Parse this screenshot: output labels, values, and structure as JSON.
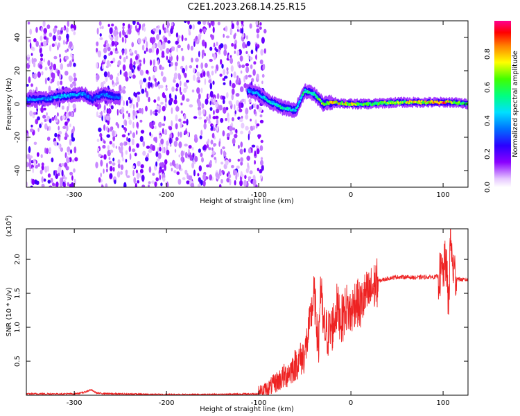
{
  "title": "C2E1.2023.268.14.25.R15",
  "chart_data": [
    {
      "type": "heatmap",
      "xlabel": "Height of straight line (km)",
      "ylabel": "Frequency (Hz)",
      "xlim": [
        -352,
        127
      ],
      "ylim": [
        -50,
        50
      ],
      "xticks": [
        -300,
        -200,
        -100,
        0,
        100
      ],
      "xtick_labels": [
        "-300",
        "-200",
        "-100",
        "0",
        "100"
      ],
      "yticks": [
        -40,
        -20,
        0,
        20,
        40
      ],
      "ytick_labels": [
        "-40",
        "-20",
        "0",
        "20",
        "40"
      ],
      "colorbar": {
        "label": "Normalized spectral amplitude",
        "range": [
          0.0,
          1.0
        ],
        "ticks": [
          0.0,
          0.2,
          0.4,
          0.6,
          0.8
        ],
        "tick_labels": [
          "0.0",
          "0.2",
          "0.4",
          "0.6",
          "0.8"
        ],
        "colors": [
          "#ffffff",
          "#8a00ff",
          "#0000ff",
          "#00c8ff",
          "#00ff3c",
          "#ffff00",
          "#ff8000",
          "#ff0000",
          "#ff0090"
        ]
      },
      "noise_regions": [
        [
          -352,
          -298
        ],
        [
          -276,
          -93
        ]
      ],
      "ridge": {
        "x": [
          -330,
          -310,
          -290,
          -280,
          -268,
          -255,
          -110,
          -100,
          -90,
          -75,
          -60,
          -50,
          -40,
          -30,
          -20,
          0,
          20,
          50,
          80,
          100,
          110,
          127
        ],
        "frequency": [
          3,
          5,
          6,
          3,
          6,
          4,
          8,
          6,
          2,
          -2,
          -4,
          8,
          6,
          0,
          1,
          0,
          0,
          1,
          1,
          1,
          1,
          0
        ],
        "amplitude": [
          0.4,
          0.45,
          0.4,
          0.3,
          0.4,
          0.35,
          0.4,
          0.45,
          0.5,
          0.55,
          0.5,
          0.6,
          0.55,
          0.7,
          0.8,
          0.75,
          0.6,
          0.7,
          0.8,
          0.95,
          0.7,
          0.6
        ]
      }
    },
    {
      "type": "line",
      "xlabel": "Height of straight line (km)",
      "ylabel": "SNR (10 * v/v)",
      "scale_label": "(x10",
      "scale_exponent": "4",
      "scale_suffix": ")",
      "xlim": [
        -352,
        127
      ],
      "ylim": [
        0,
        2.45
      ],
      "xticks": [
        -300,
        -200,
        -100,
        0,
        100
      ],
      "xtick_labels": [
        "-300",
        "-200",
        "-100",
        "0",
        "100"
      ],
      "yticks": [
        0.5,
        1.0,
        1.5,
        2.0
      ],
      "ytick_labels": [
        "0.5",
        "1.0",
        "1.5",
        "2.0"
      ],
      "series": [
        {
          "color": "#ee2222",
          "x": [
            -352,
            -330,
            -300,
            -290,
            -282,
            -278,
            -275,
            -260,
            -200,
            -150,
            -100,
            -90,
            -80,
            -70,
            -60,
            -50,
            -45,
            -40,
            -35,
            -33,
            -30,
            -25,
            -20,
            -15,
            -10,
            -5,
            0,
            5,
            10,
            15,
            20,
            25,
            30,
            40,
            50,
            60,
            70,
            80,
            90,
            95,
            100,
            103,
            106,
            108,
            110,
            115,
            120,
            127
          ],
          "y": [
            0.02,
            0.02,
            0.02,
            0.04,
            0.08,
            0.05,
            0.03,
            0.02,
            0.01,
            0.01,
            0.02,
            0.1,
            0.2,
            0.3,
            0.45,
            0.6,
            1.0,
            1.5,
            0.7,
            1.65,
            1.0,
            0.9,
            1.0,
            1.3,
            1.1,
            1.3,
            1.2,
            1.4,
            1.3,
            1.45,
            1.5,
            1.6,
            1.68,
            1.72,
            1.74,
            1.74,
            1.73,
            1.74,
            1.74,
            1.75,
            1.8,
            2.0,
            1.3,
            2.4,
            1.9,
            1.72,
            1.7,
            1.7
          ]
        }
      ]
    }
  ]
}
